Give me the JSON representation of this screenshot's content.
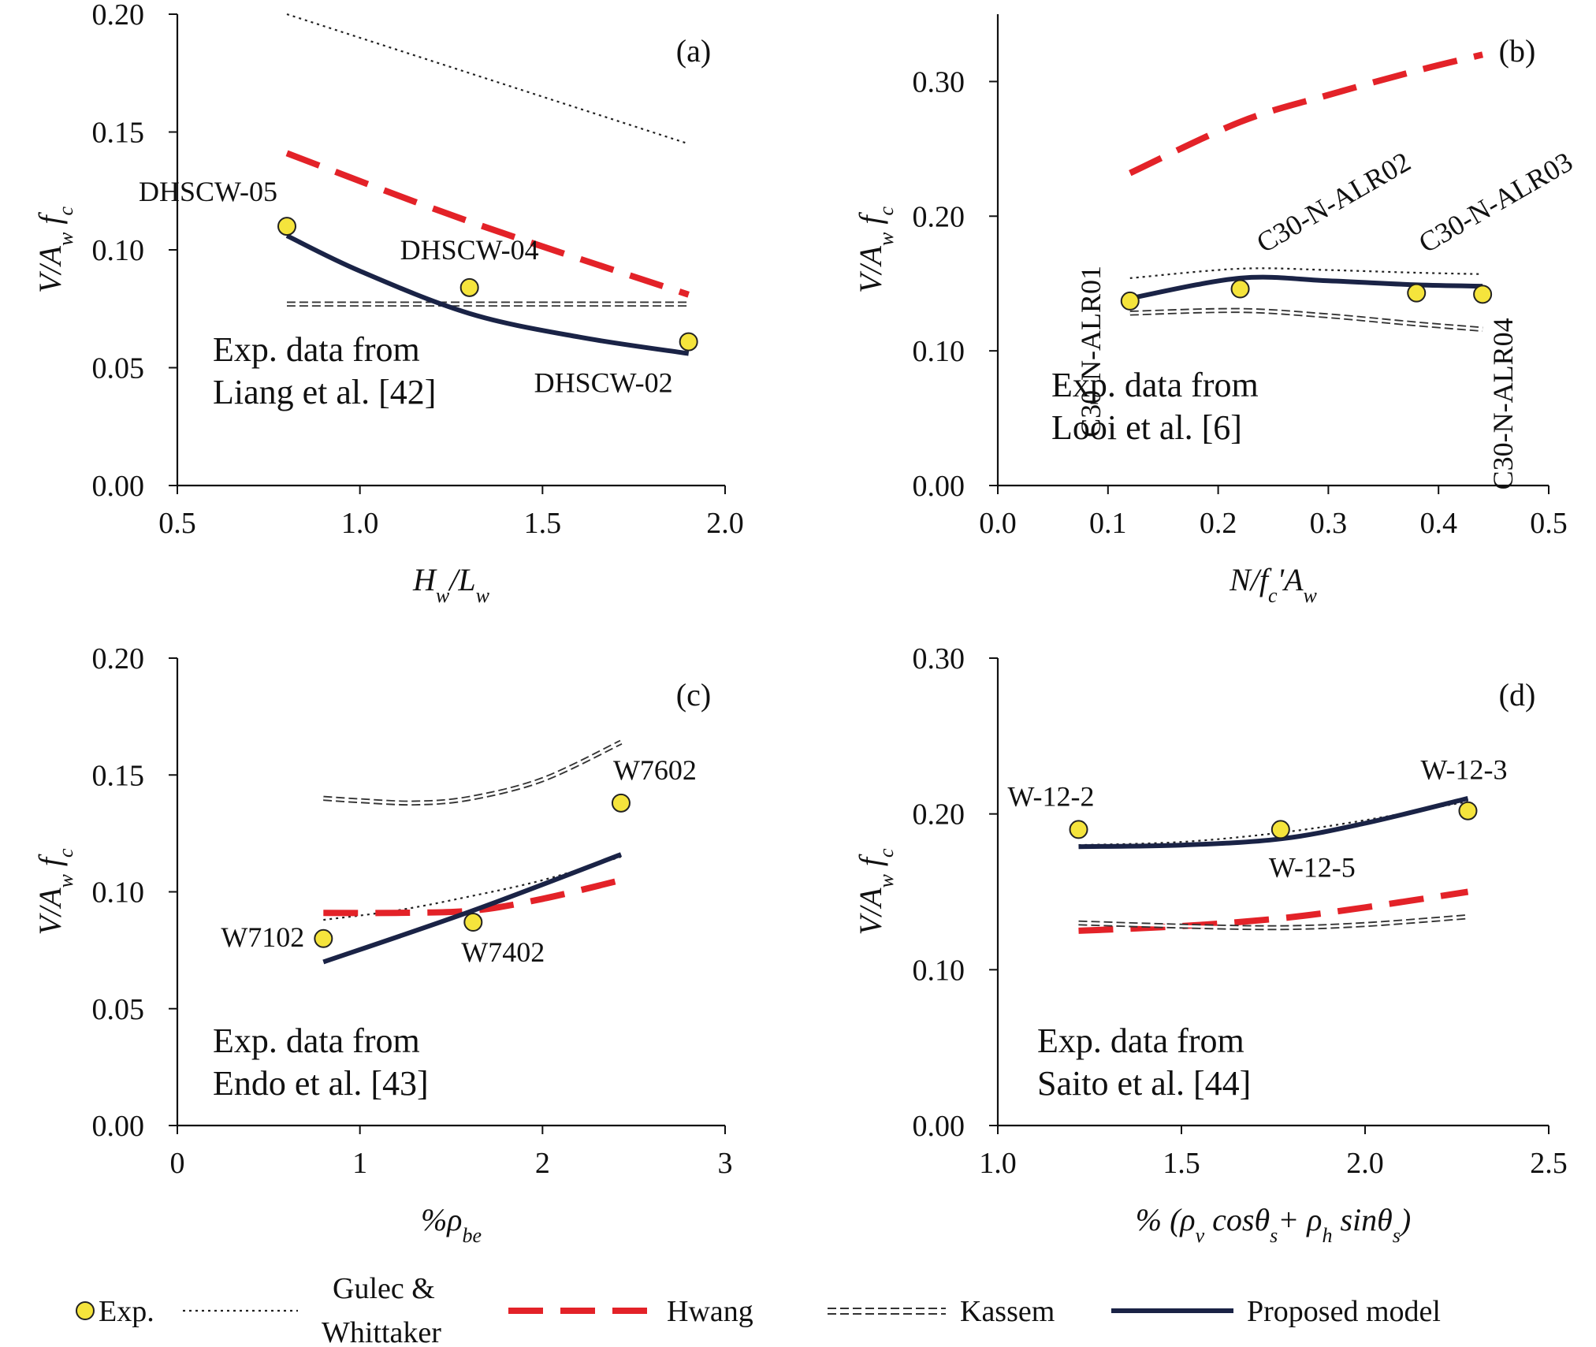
{
  "colors": {
    "exp_fill": "#f5e43c",
    "exp_stroke": "#222222",
    "gulec": "#222222",
    "hwang": "#e32228",
    "kassem": "#333333",
    "proposed": "#1a2346",
    "axis": "#111111"
  },
  "legend": {
    "exp": "Exp.",
    "gulec_line1": "Gulec &",
    "gulec_line2": "Whittaker",
    "hwang": "Hwang",
    "kassem": "Kassem",
    "proposed": "Proposed model"
  },
  "chart_data": [
    {
      "panel": "a",
      "letter": "(a)",
      "type": "line",
      "xlabel": {
        "main": "H",
        "sub1": "w",
        "mid": "/L",
        "sub2": "w"
      },
      "ylabel": {
        "main": "V/A",
        "sub1": "w",
        "tail": " f",
        "sub2": "c"
      },
      "xlim": [
        0.5,
        2.0
      ],
      "ylim": [
        0.0,
        0.2
      ],
      "xticks": [
        0.5,
        1.0,
        1.5,
        2.0
      ],
      "xtick_labels": [
        "0.5",
        "1.0",
        "1.5",
        "2.0"
      ],
      "yticks": [
        0.0,
        0.05,
        0.1,
        0.15,
        0.2
      ],
      "ytick_labels": [
        "0.00",
        "0.05",
        "0.10",
        "0.15",
        "0.20"
      ],
      "note_lines": [
        "Exp. data from",
        "Liang et al. [42]"
      ],
      "points": [
        {
          "x": 0.8,
          "y": 0.11,
          "label": "DHSCW-05",
          "anchor": "ul"
        },
        {
          "x": 1.3,
          "y": 0.084,
          "label": "DHSCW-04",
          "anchor": "u"
        },
        {
          "x": 1.9,
          "y": 0.061,
          "label": "DHSCW-02",
          "anchor": "dl"
        }
      ],
      "series": [
        {
          "name": "Gulec & Whittaker",
          "x": [
            0.8,
            1.9
          ],
          "y": [
            0.2,
            0.145
          ]
        },
        {
          "name": "Hwang",
          "x": [
            0.8,
            1.3,
            1.9
          ],
          "y": [
            0.141,
            0.112,
            0.081
          ]
        },
        {
          "name": "Kassem",
          "x": [
            0.8,
            1.3,
            1.9
          ],
          "y": [
            0.077,
            0.077,
            0.077
          ]
        },
        {
          "name": "Proposed model",
          "x": [
            0.8,
            1.0,
            1.3,
            1.6,
            1.9
          ],
          "y": [
            0.106,
            0.091,
            0.073,
            0.063,
            0.056
          ]
        }
      ]
    },
    {
      "panel": "b",
      "letter": "(b)",
      "type": "line",
      "xlabel": {
        "main": "N/f",
        "sub1": "c",
        "mid": "'A",
        "sub2": "w"
      },
      "ylabel": {
        "main": "V/A",
        "sub1": "w",
        "tail": " f",
        "sub2": "c"
      },
      "xlim": [
        0.0,
        0.5
      ],
      "ylim": [
        0.0,
        0.35
      ],
      "xticks": [
        0.0,
        0.1,
        0.2,
        0.3,
        0.4,
        0.5
      ],
      "xtick_labels": [
        "0.0",
        "0.1",
        "0.2",
        "0.3",
        "0.4",
        "0.5"
      ],
      "yticks": [
        0.0,
        0.1,
        0.2,
        0.3
      ],
      "ytick_labels": [
        "0.00",
        "0.10",
        "0.20",
        "0.30"
      ],
      "note_lines": [
        "Exp. data from",
        "Looi et al. [6]"
      ],
      "points": [
        {
          "x": 0.12,
          "y": 0.137,
          "label": "C30-N-ALR01",
          "anchor": "rot"
        },
        {
          "x": 0.22,
          "y": 0.146,
          "label": "C30-N-ALR02",
          "anchor": "rot"
        },
        {
          "x": 0.38,
          "y": 0.143,
          "label": "C30-N-ALR03",
          "anchor": "rot"
        },
        {
          "x": 0.44,
          "y": 0.142,
          "label": "C30-N-ALR04",
          "anchor": "rot"
        }
      ],
      "series": [
        {
          "name": "Gulec & Whittaker",
          "x": [
            0.12,
            0.22,
            0.3,
            0.38,
            0.44
          ],
          "y": [
            0.154,
            0.161,
            0.16,
            0.158,
            0.157
          ]
        },
        {
          "name": "Hwang",
          "x": [
            0.12,
            0.22,
            0.3,
            0.38,
            0.44
          ],
          "y": [
            0.232,
            0.27,
            0.29,
            0.308,
            0.32
          ]
        },
        {
          "name": "Kassem",
          "x": [
            0.12,
            0.22,
            0.3,
            0.38,
            0.44
          ],
          "y": [
            0.128,
            0.13,
            0.126,
            0.12,
            0.116
          ]
        },
        {
          "name": "Proposed model",
          "x": [
            0.12,
            0.22,
            0.3,
            0.38,
            0.44
          ],
          "y": [
            0.139,
            0.154,
            0.152,
            0.149,
            0.148
          ]
        }
      ]
    },
    {
      "panel": "c",
      "letter": "(c)",
      "type": "line",
      "xlabel": {
        "main": "%ρ",
        "sub1": "be",
        "mid": "",
        "sub2": ""
      },
      "ylabel": {
        "main": "V/A",
        "sub1": "w",
        "tail": " f",
        "sub2": "c"
      },
      "xlim": [
        0,
        3
      ],
      "ylim": [
        0.0,
        0.2
      ],
      "xticks": [
        0,
        1,
        2,
        3
      ],
      "xtick_labels": [
        "0",
        "1",
        "2",
        "3"
      ],
      "yticks": [
        0.0,
        0.05,
        0.1,
        0.15,
        0.2
      ],
      "ytick_labels": [
        "0.00",
        "0.05",
        "0.10",
        "0.15",
        "0.20"
      ],
      "note_lines": [
        "Exp. data from",
        "Endo et al. [43]"
      ],
      "points": [
        {
          "x": 0.8,
          "y": 0.08,
          "label": "W7102",
          "anchor": "l"
        },
        {
          "x": 1.62,
          "y": 0.087,
          "label": "W7402",
          "anchor": "d"
        },
        {
          "x": 2.43,
          "y": 0.138,
          "label": "W7602",
          "anchor": "u"
        }
      ],
      "series": [
        {
          "name": "Gulec & Whittaker",
          "x": [
            0.8,
            1.2,
            1.6,
            2.0,
            2.43
          ],
          "y": [
            0.088,
            0.092,
            0.098,
            0.105,
            0.115
          ]
        },
        {
          "name": "Hwang",
          "x": [
            0.8,
            1.2,
            1.62,
            2.0,
            2.43
          ],
          "y": [
            0.091,
            0.091,
            0.092,
            0.097,
            0.105
          ]
        },
        {
          "name": "Kassem",
          "x": [
            0.8,
            1.0,
            1.3,
            1.6,
            2.0,
            2.43
          ],
          "y": [
            0.14,
            0.139,
            0.138,
            0.14,
            0.148,
            0.164
          ]
        },
        {
          "name": "Proposed model",
          "x": [
            0.8,
            1.62,
            2.43
          ],
          "y": [
            0.07,
            0.092,
            0.116
          ]
        }
      ]
    },
    {
      "panel": "d",
      "letter": "(d)",
      "type": "line",
      "xlabel": {
        "main": "% (ρ",
        "sub1": "v",
        "mid": " cosθ",
        "sub2": "s",
        "mid2": "+ ρ",
        "sub3": "h",
        "mid3": " sinθ",
        "sub4": "s",
        "end": ")"
      },
      "ylabel": {
        "main": "V/A",
        "sub1": "w",
        "tail": " f",
        "sub2": "c"
      },
      "xlim": [
        1.0,
        2.5
      ],
      "ylim": [
        0.0,
        0.3
      ],
      "xticks": [
        1.0,
        1.5,
        2.0,
        2.5
      ],
      "xtick_labels": [
        "1.0",
        "1.5",
        "2.0",
        "2.5"
      ],
      "yticks": [
        0.0,
        0.1,
        0.2,
        0.3
      ],
      "ytick_labels": [
        "0.00",
        "0.10",
        "0.20",
        "0.30"
      ],
      "note_lines": [
        "Exp. data from",
        "Saito et al. [44]"
      ],
      "points": [
        {
          "x": 1.22,
          "y": 0.19,
          "label": "W-12-2",
          "anchor": "u"
        },
        {
          "x": 1.77,
          "y": 0.19,
          "label": "W-12-5",
          "anchor": "d"
        },
        {
          "x": 2.28,
          "y": 0.202,
          "label": "W-12-3",
          "anchor": "u"
        }
      ],
      "series": [
        {
          "name": "Gulec & Whittaker",
          "x": [
            1.22,
            1.5,
            1.77,
            2.0,
            2.28
          ],
          "y": [
            0.18,
            0.182,
            0.188,
            0.196,
            0.208
          ]
        },
        {
          "name": "Hwang",
          "x": [
            1.22,
            1.5,
            1.77,
            2.0,
            2.28
          ],
          "y": [
            0.125,
            0.128,
            0.133,
            0.14,
            0.15
          ]
        },
        {
          "name": "Kassem",
          "x": [
            1.22,
            1.5,
            1.77,
            2.0,
            2.28
          ],
          "y": [
            0.13,
            0.128,
            0.127,
            0.129,
            0.134
          ]
        },
        {
          "name": "Proposed model",
          "x": [
            1.22,
            1.5,
            1.77,
            2.0,
            2.28
          ],
          "y": [
            0.179,
            0.18,
            0.184,
            0.194,
            0.21
          ]
        }
      ]
    }
  ]
}
